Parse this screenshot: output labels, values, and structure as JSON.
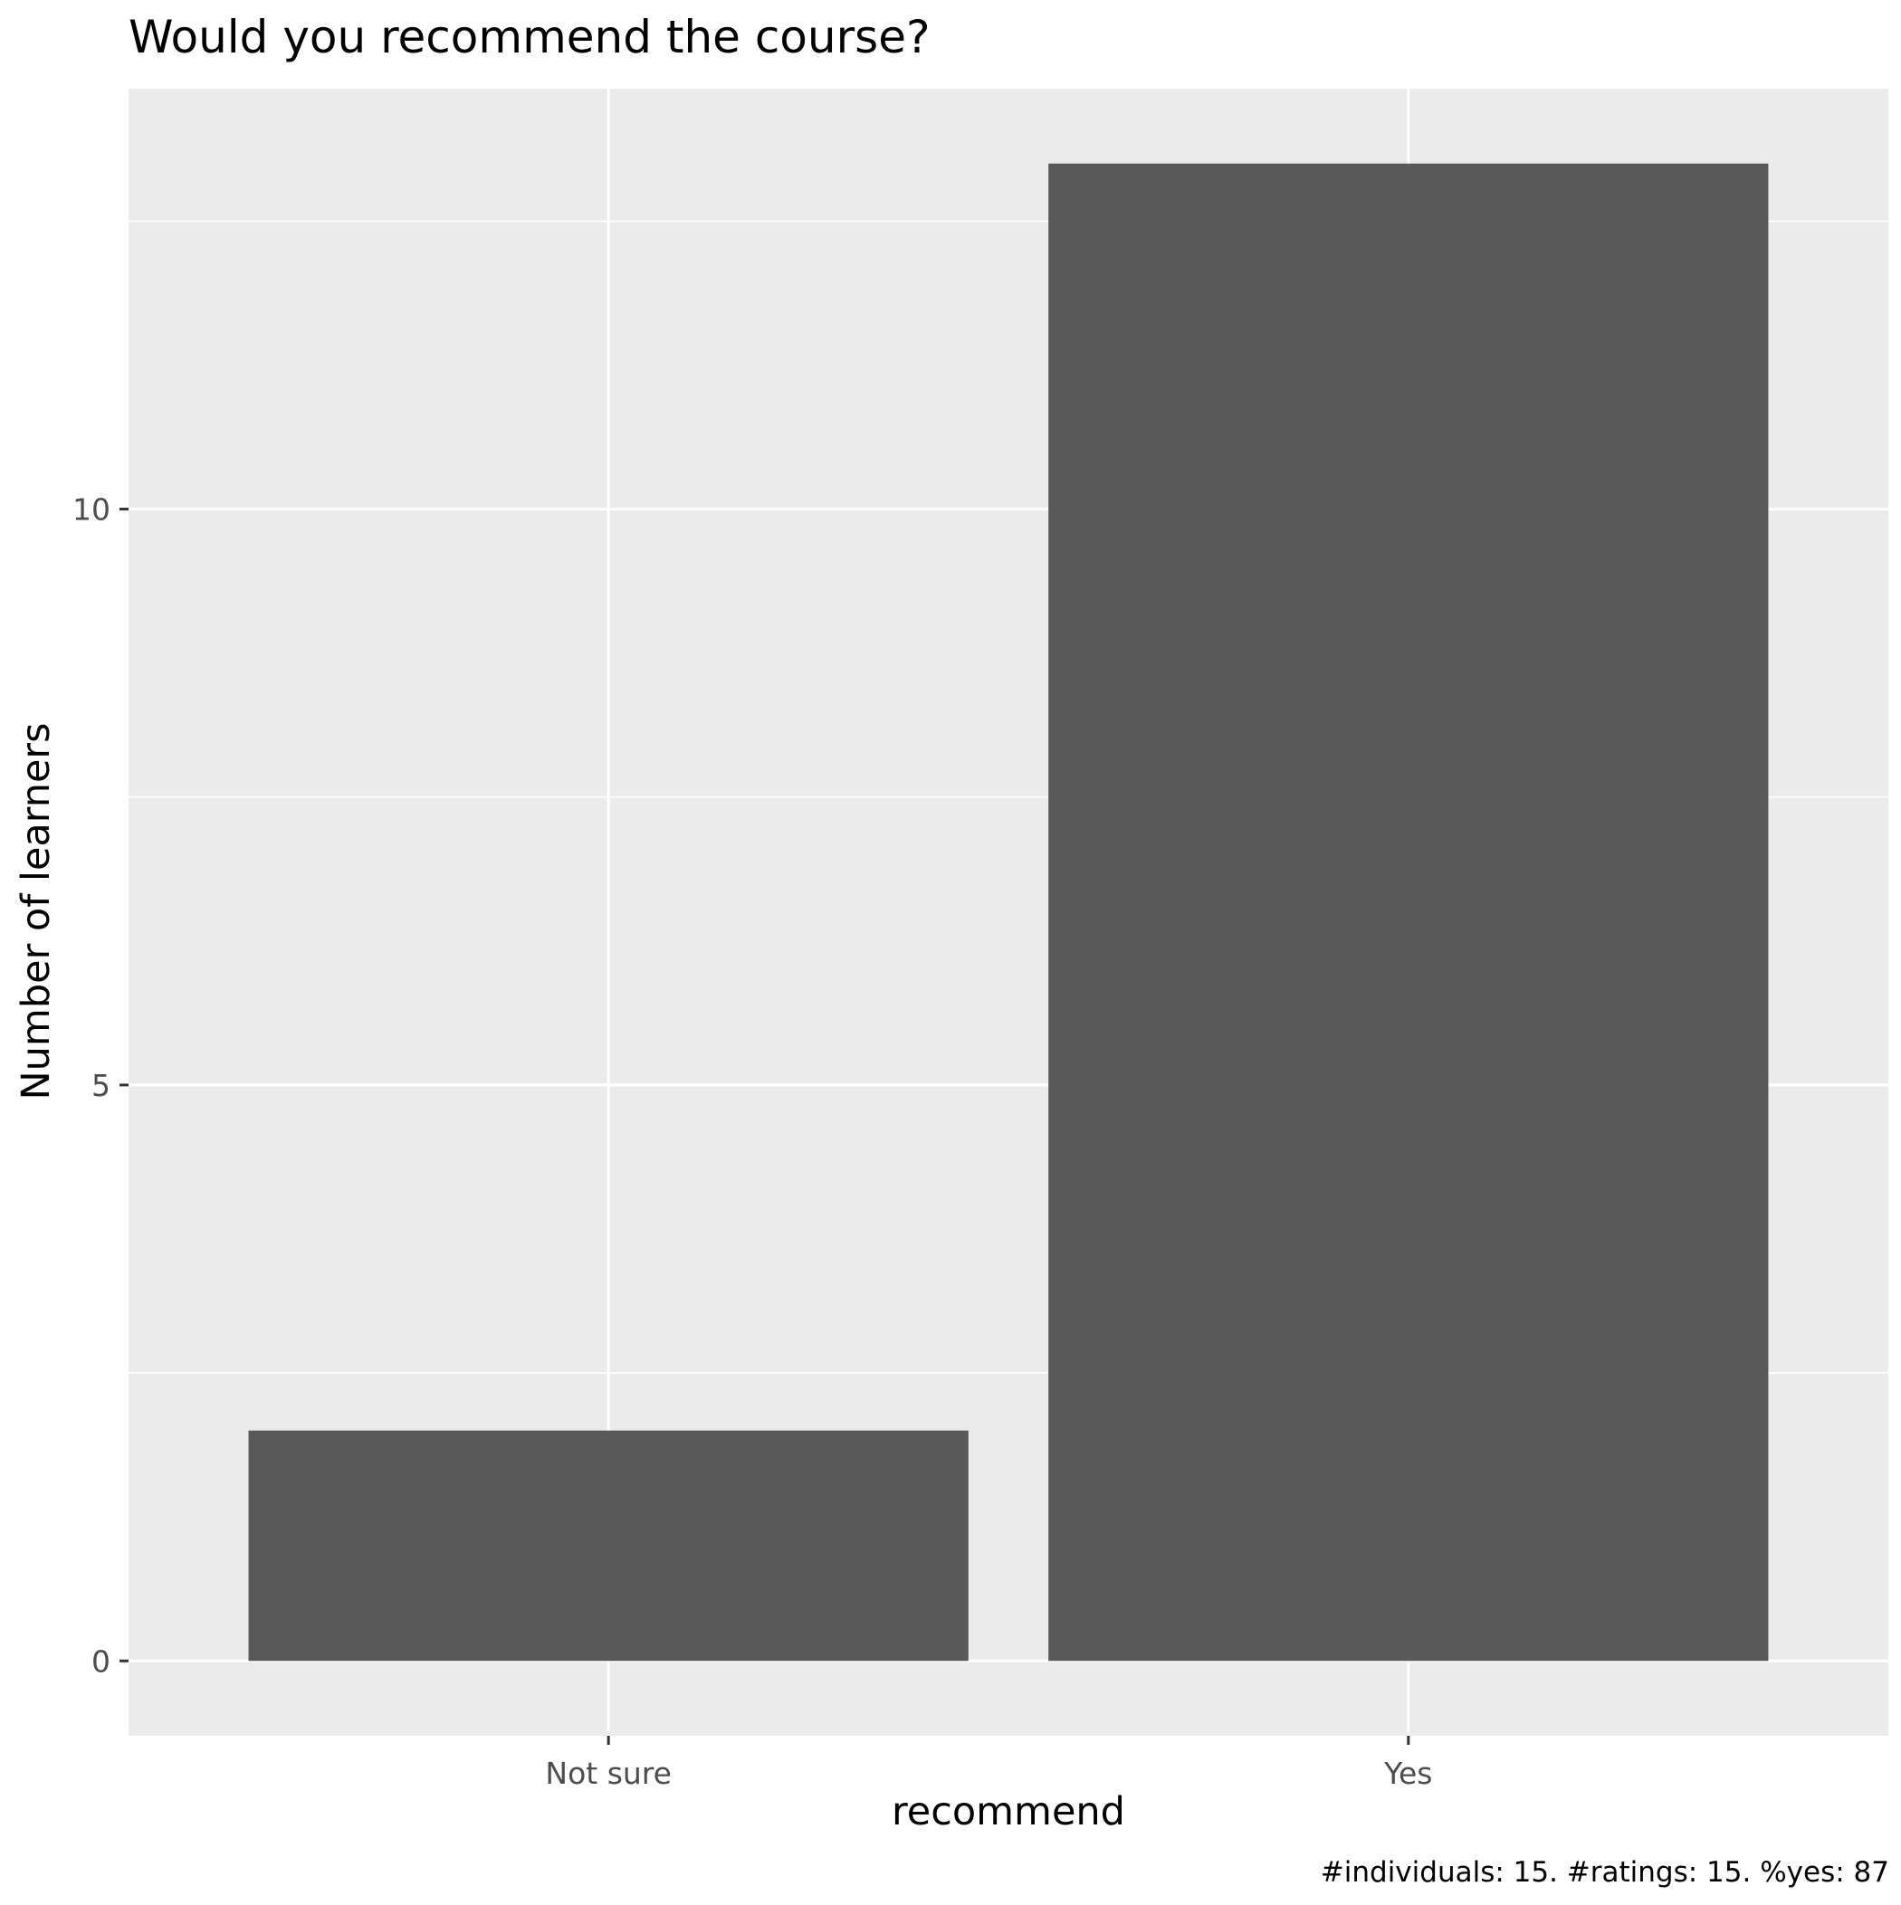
{
  "chart_data": {
    "type": "bar",
    "title": "Would you recommend the course?",
    "xlabel": "recommend",
    "ylabel": "Number of learners",
    "caption": "#individuals: 15. #ratings: 15. %yes: 87",
    "categories": [
      "Not sure",
      "Yes"
    ],
    "values": [
      2,
      13
    ],
    "yticks": [
      0,
      5,
      10
    ],
    "ylim": [
      -0.65,
      13.65
    ],
    "grid": true,
    "legend": "none",
    "colors": {
      "panel": "#ebebeb",
      "grid": "#ffffff",
      "bar": "#595959",
      "tick": "#333333",
      "tick_label": "#4d4d4d"
    }
  }
}
